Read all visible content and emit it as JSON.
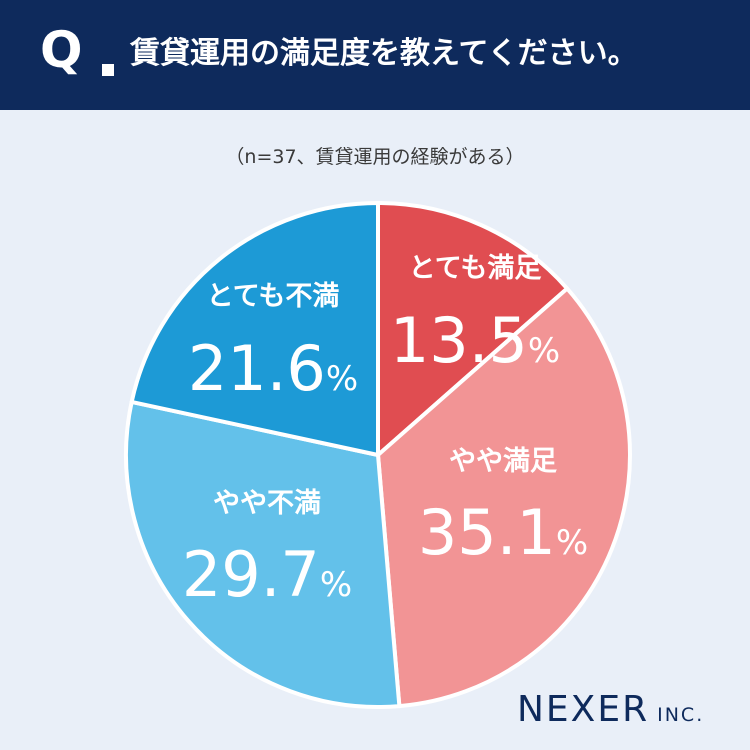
{
  "header": {
    "q_mark": "Q",
    "question": "賃貸運用の満足度を教えてください。"
  },
  "subtitle": "（n=37、賃貸運用の経験がある）",
  "logo": {
    "main": "NEXER",
    "sub": "INC."
  },
  "colors": {
    "header_bg": "#0e2a5c",
    "page_bg": "#e9eff8",
    "very_satisfied": "#e04d51",
    "somewhat_satisfied": "#f29495",
    "somewhat_dissatisfied": "#63c1ea",
    "very_dissatisfied": "#1d9ad6"
  },
  "chart_data": {
    "type": "pie",
    "start": "12 o'clock, clockwise",
    "slices": [
      {
        "label": "とても満足",
        "value": 13.5,
        "display": "13.5",
        "unit": "%",
        "color": "#e04d51"
      },
      {
        "label": "やや満足",
        "value": 35.1,
        "display": "35.1",
        "unit": "%",
        "color": "#f29495"
      },
      {
        "label": "やや不満",
        "value": 29.7,
        "display": "29.7",
        "unit": "%",
        "color": "#63c1ea"
      },
      {
        "label": "とても不満",
        "value": 21.6,
        "display": "21.6",
        "unit": "%",
        "color": "#1d9ad6"
      }
    ]
  }
}
